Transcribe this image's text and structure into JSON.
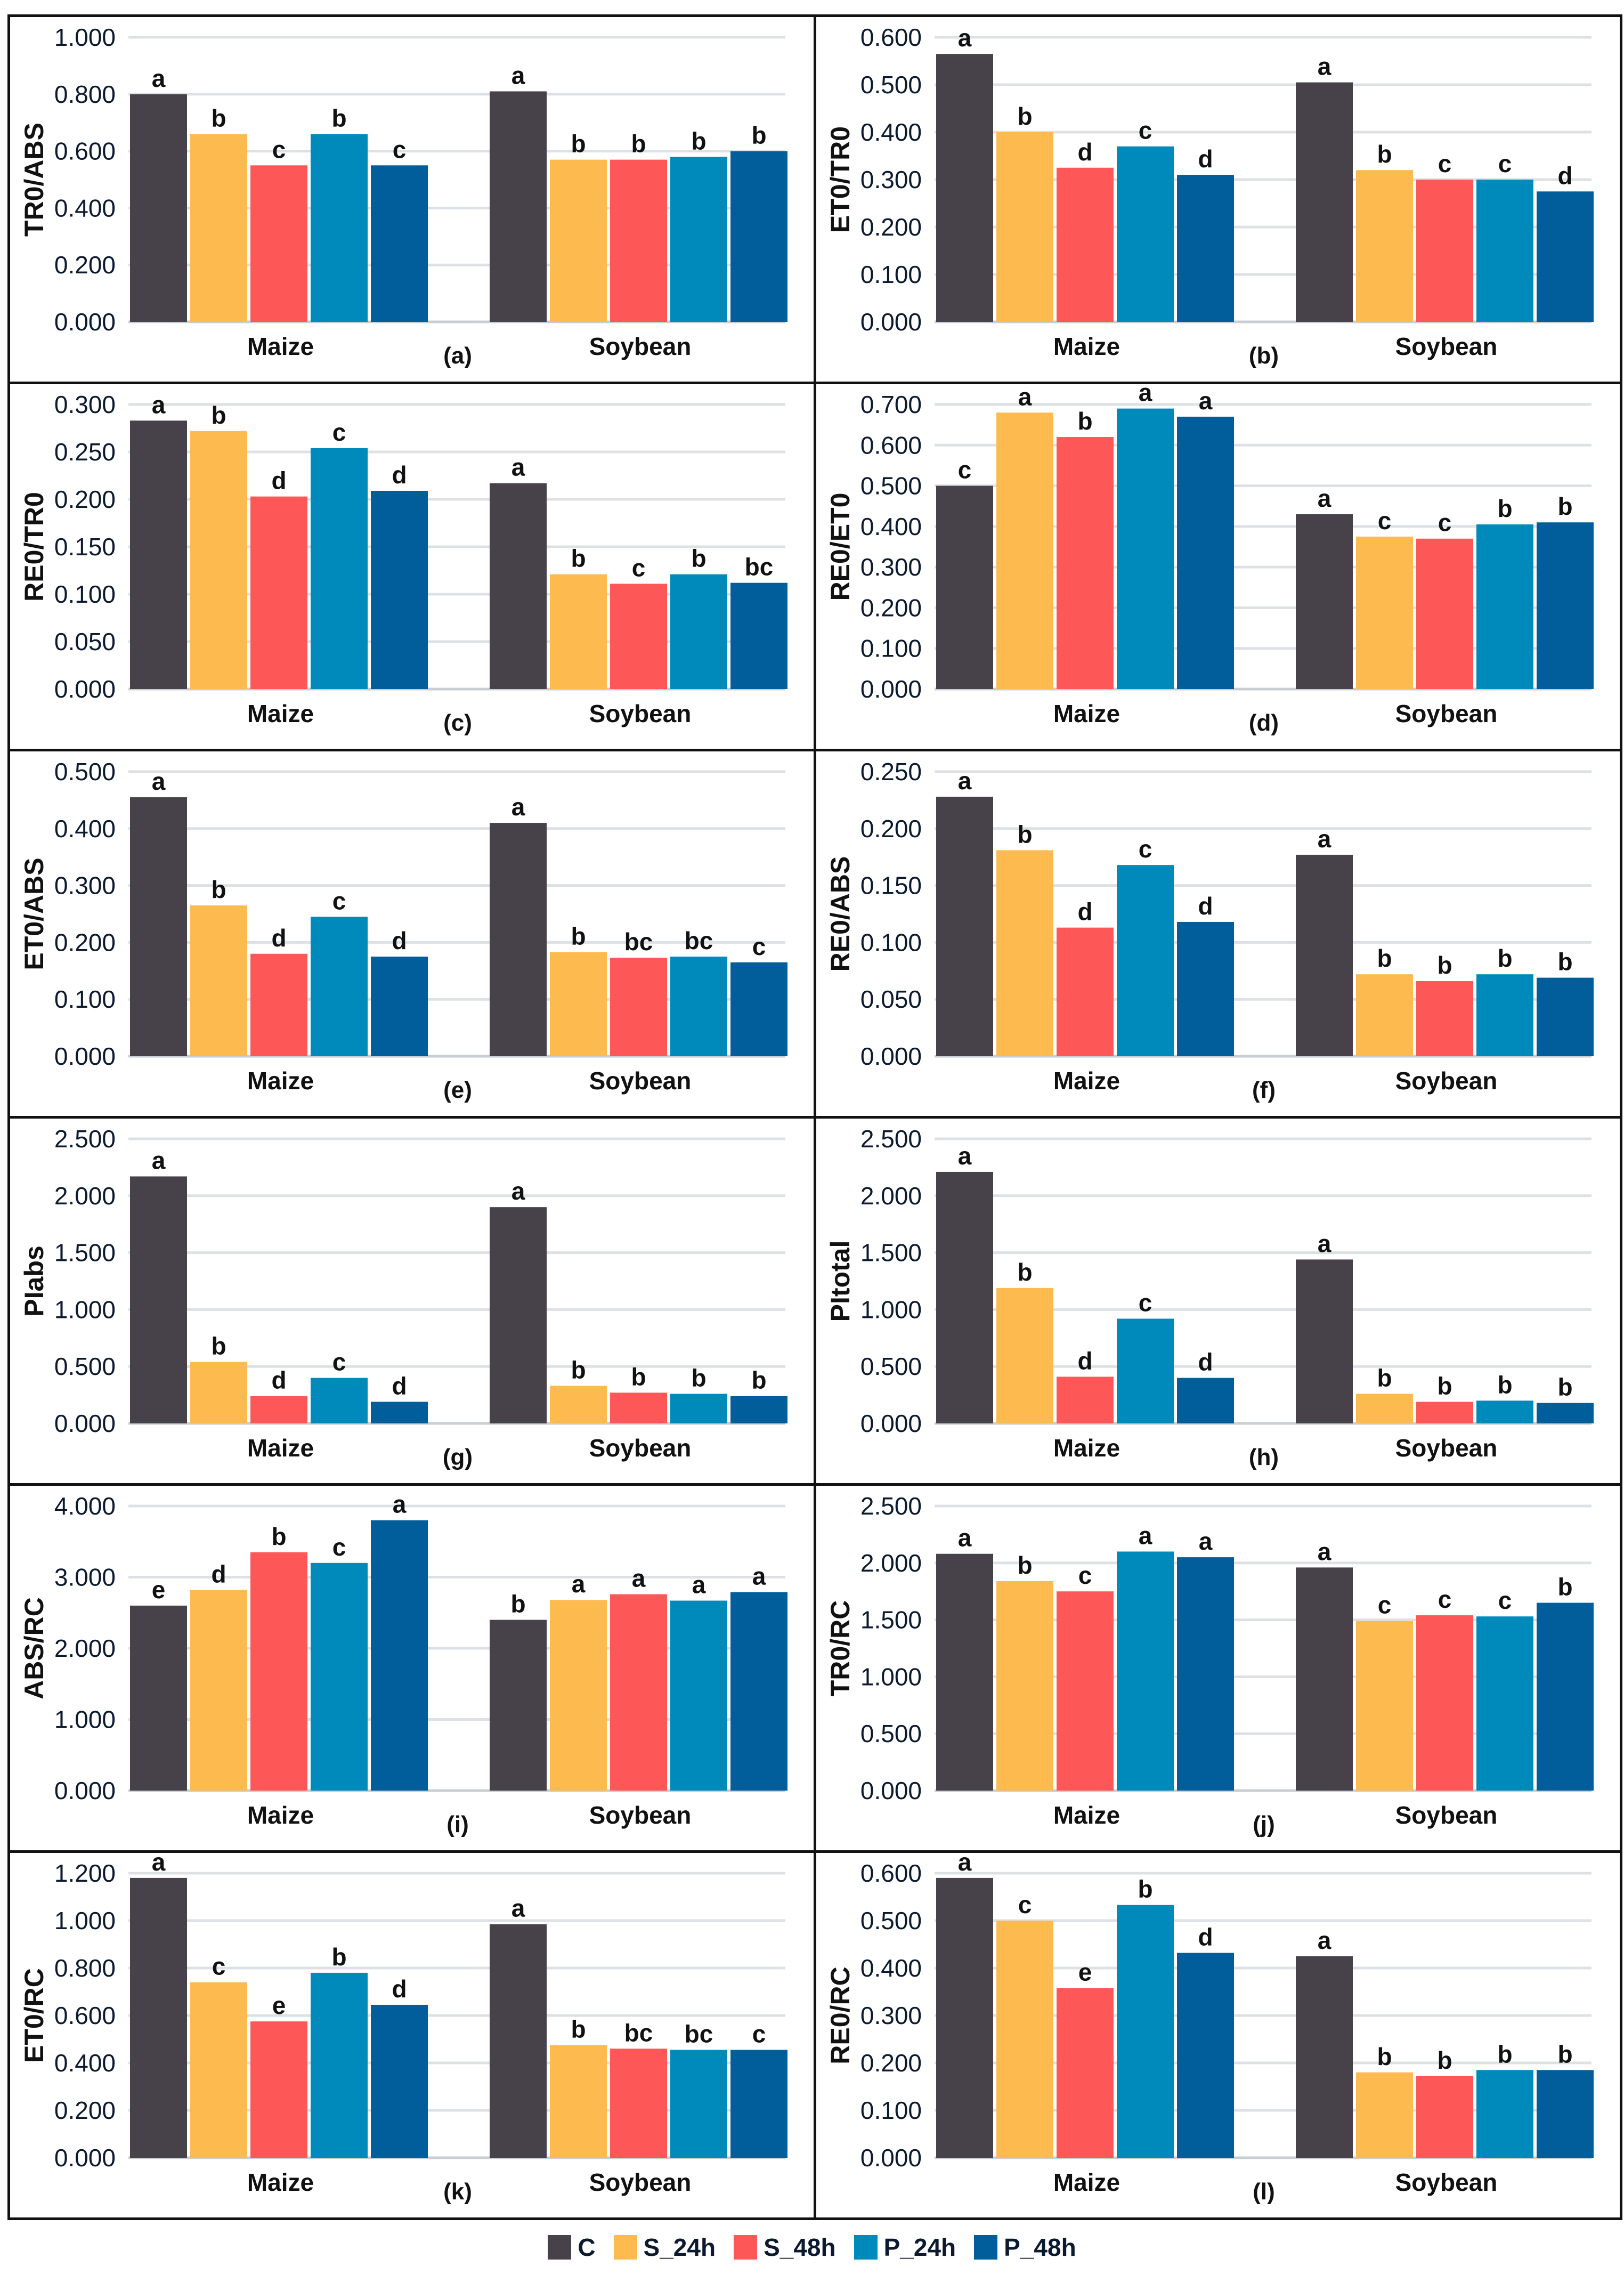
{
  "chart_data": [
    {
      "type": "bar",
      "panel": "(a)",
      "ylabel": "TR0/ABS",
      "ylim": [
        0,
        1.0
      ],
      "ystep": 0.2,
      "categories": [
        "Maize",
        "Soybean"
      ],
      "values": {
        "Maize": [
          0.8,
          0.66,
          0.55,
          0.66,
          0.55
        ],
        "Soybean": [
          0.81,
          0.57,
          0.57,
          0.58,
          0.6
        ]
      },
      "letters": {
        "Maize": [
          "a",
          "b",
          "c",
          "b",
          "c"
        ],
        "Soybean": [
          "a",
          "b",
          "b",
          "b",
          "b"
        ]
      }
    },
    {
      "type": "bar",
      "panel": "(b)",
      "ylabel": "ET0/TR0",
      "ylim": [
        0,
        0.6
      ],
      "ystep": 0.1,
      "categories": [
        "Maize",
        "Soybean"
      ],
      "values": {
        "Maize": [
          0.565,
          0.4,
          0.325,
          0.37,
          0.31
        ],
        "Soybean": [
          0.505,
          0.32,
          0.3,
          0.3,
          0.275
        ]
      },
      "letters": {
        "Maize": [
          "a",
          "b",
          "d",
          "c",
          "d"
        ],
        "Soybean": [
          "a",
          "b",
          "c",
          "c",
          "d"
        ]
      }
    },
    {
      "type": "bar",
      "panel": "(c)",
      "ylabel": "RE0/TR0",
      "ylim": [
        0,
        0.3
      ],
      "ystep": 0.05,
      "categories": [
        "Maize",
        "Soybean"
      ],
      "values": {
        "Maize": [
          0.283,
          0.272,
          0.203,
          0.254,
          0.209
        ],
        "Soybean": [
          0.217,
          0.121,
          0.111,
          0.121,
          0.112
        ]
      },
      "letters": {
        "Maize": [
          "a",
          "b",
          "d",
          "c",
          "d"
        ],
        "Soybean": [
          "a",
          "b",
          "c",
          "b",
          "bc"
        ]
      }
    },
    {
      "type": "bar",
      "panel": "(d)",
      "ylabel": "RE0/ET0",
      "ylim": [
        0,
        0.7
      ],
      "ystep": 0.1,
      "categories": [
        "Maize",
        "Soybean"
      ],
      "values": {
        "Maize": [
          0.5,
          0.68,
          0.62,
          0.69,
          0.67
        ],
        "Soybean": [
          0.43,
          0.375,
          0.37,
          0.405,
          0.41
        ]
      },
      "letters": {
        "Maize": [
          "c",
          "a",
          "b",
          "a",
          "a"
        ],
        "Soybean": [
          "a",
          "c",
          "c",
          "b",
          "b"
        ]
      }
    },
    {
      "type": "bar",
      "panel": "(e)",
      "ylabel": "ET0/ABS",
      "ylim": [
        0,
        0.5
      ],
      "ystep": 0.1,
      "categories": [
        "Maize",
        "Soybean"
      ],
      "values": {
        "Maize": [
          0.455,
          0.265,
          0.18,
          0.245,
          0.175
        ],
        "Soybean": [
          0.41,
          0.183,
          0.173,
          0.175,
          0.165
        ]
      },
      "letters": {
        "Maize": [
          "a",
          "b",
          "d",
          "c",
          "d"
        ],
        "Soybean": [
          "a",
          "b",
          "bc",
          "bc",
          "c"
        ]
      }
    },
    {
      "type": "bar",
      "panel": "(f)",
      "ylabel": "RE0/ABS",
      "ylim": [
        0,
        0.25
      ],
      "ystep": 0.05,
      "categories": [
        "Maize",
        "Soybean"
      ],
      "values": {
        "Maize": [
          0.228,
          0.181,
          0.113,
          0.168,
          0.118
        ],
        "Soybean": [
          0.177,
          0.072,
          0.066,
          0.072,
          0.069
        ]
      },
      "letters": {
        "Maize": [
          "a",
          "b",
          "d",
          "c",
          "d"
        ],
        "Soybean": [
          "a",
          "b",
          "b",
          "b",
          "b"
        ]
      }
    },
    {
      "type": "bar",
      "panel": "(g)",
      "ylabel": "PIabs",
      "ylim": [
        0,
        2.5
      ],
      "ystep": 0.5,
      "categories": [
        "Maize",
        "Soybean"
      ],
      "values": {
        "Maize": [
          2.17,
          0.54,
          0.24,
          0.4,
          0.19
        ],
        "Soybean": [
          1.9,
          0.33,
          0.27,
          0.26,
          0.24
        ]
      },
      "letters": {
        "Maize": [
          "a",
          "b",
          "d",
          "c",
          "d"
        ],
        "Soybean": [
          "a",
          "b",
          "b",
          "b",
          "b"
        ]
      }
    },
    {
      "type": "bar",
      "panel": "(h)",
      "ylabel": "PItotal",
      "ylim": [
        0,
        2.5
      ],
      "ystep": 0.5,
      "categories": [
        "Maize",
        "Soybean"
      ],
      "values": {
        "Maize": [
          2.21,
          1.19,
          0.41,
          0.92,
          0.4
        ],
        "Soybean": [
          1.44,
          0.26,
          0.19,
          0.2,
          0.18
        ]
      },
      "letters": {
        "Maize": [
          "a",
          "b",
          "d",
          "c",
          "d"
        ],
        "Soybean": [
          "a",
          "b",
          "b",
          "b",
          "b"
        ]
      }
    },
    {
      "type": "bar",
      "panel": "(i)",
      "ylabel": "ABS/RC",
      "ylim": [
        0,
        4.0
      ],
      "ystep": 1.0,
      "categories": [
        "Maize",
        "Soybean"
      ],
      "values": {
        "Maize": [
          2.6,
          2.82,
          3.35,
          3.2,
          3.8
        ],
        "Soybean": [
          2.4,
          2.68,
          2.76,
          2.67,
          2.79
        ]
      },
      "letters": {
        "Maize": [
          "e",
          "d",
          "b",
          "c",
          "a"
        ],
        "Soybean": [
          "b",
          "a",
          "a",
          "a",
          "a"
        ]
      }
    },
    {
      "type": "bar",
      "panel": "(j)",
      "ylabel": "TR0/RC",
      "ylim": [
        0,
        2.5
      ],
      "ystep": 0.5,
      "categories": [
        "Maize",
        "Soybean"
      ],
      "values": {
        "Maize": [
          2.08,
          1.84,
          1.75,
          2.1,
          2.05
        ],
        "Soybean": [
          1.96,
          1.49,
          1.54,
          1.53,
          1.65
        ]
      },
      "letters": {
        "Maize": [
          "a",
          "b",
          "c",
          "a",
          "a"
        ],
        "Soybean": [
          "a",
          "c",
          "c",
          "c",
          "b"
        ]
      }
    },
    {
      "type": "bar",
      "panel": "(k)",
      "ylabel": "ET0/RC",
      "ylim": [
        0,
        1.2
      ],
      "ystep": 0.2,
      "categories": [
        "Maize",
        "Soybean"
      ],
      "values": {
        "Maize": [
          1.18,
          0.74,
          0.575,
          0.78,
          0.645
        ],
        "Soybean": [
          0.985,
          0.475,
          0.46,
          0.455,
          0.455
        ]
      },
      "letters": {
        "Maize": [
          "a",
          "c",
          "e",
          "b",
          "d"
        ],
        "Soybean": [
          "a",
          "b",
          "bc",
          "bc",
          "c"
        ]
      }
    },
    {
      "type": "bar",
      "panel": "(l)",
      "ylabel": "RE0/RC",
      "ylim": [
        0,
        0.6
      ],
      "ystep": 0.1,
      "categories": [
        "Maize",
        "Soybean"
      ],
      "values": {
        "Maize": [
          0.59,
          0.5,
          0.358,
          0.533,
          0.432
        ],
        "Soybean": [
          0.425,
          0.18,
          0.172,
          0.185,
          0.185
        ]
      },
      "letters": {
        "Maize": [
          "a",
          "c",
          "e",
          "b",
          "d"
        ],
        "Soybean": [
          "a",
          "b",
          "b",
          "b",
          "b"
        ]
      }
    }
  ],
  "legend": [
    {
      "label": "C",
      "color": "#47424a"
    },
    {
      "label": "S_24h",
      "color": "#fdbb4f"
    },
    {
      "label": "S_48h",
      "color": "#fe5757"
    },
    {
      "label": "P_24h",
      "color": "#008abb"
    },
    {
      "label": "P_48h",
      "color": "#015e9a"
    }
  ]
}
